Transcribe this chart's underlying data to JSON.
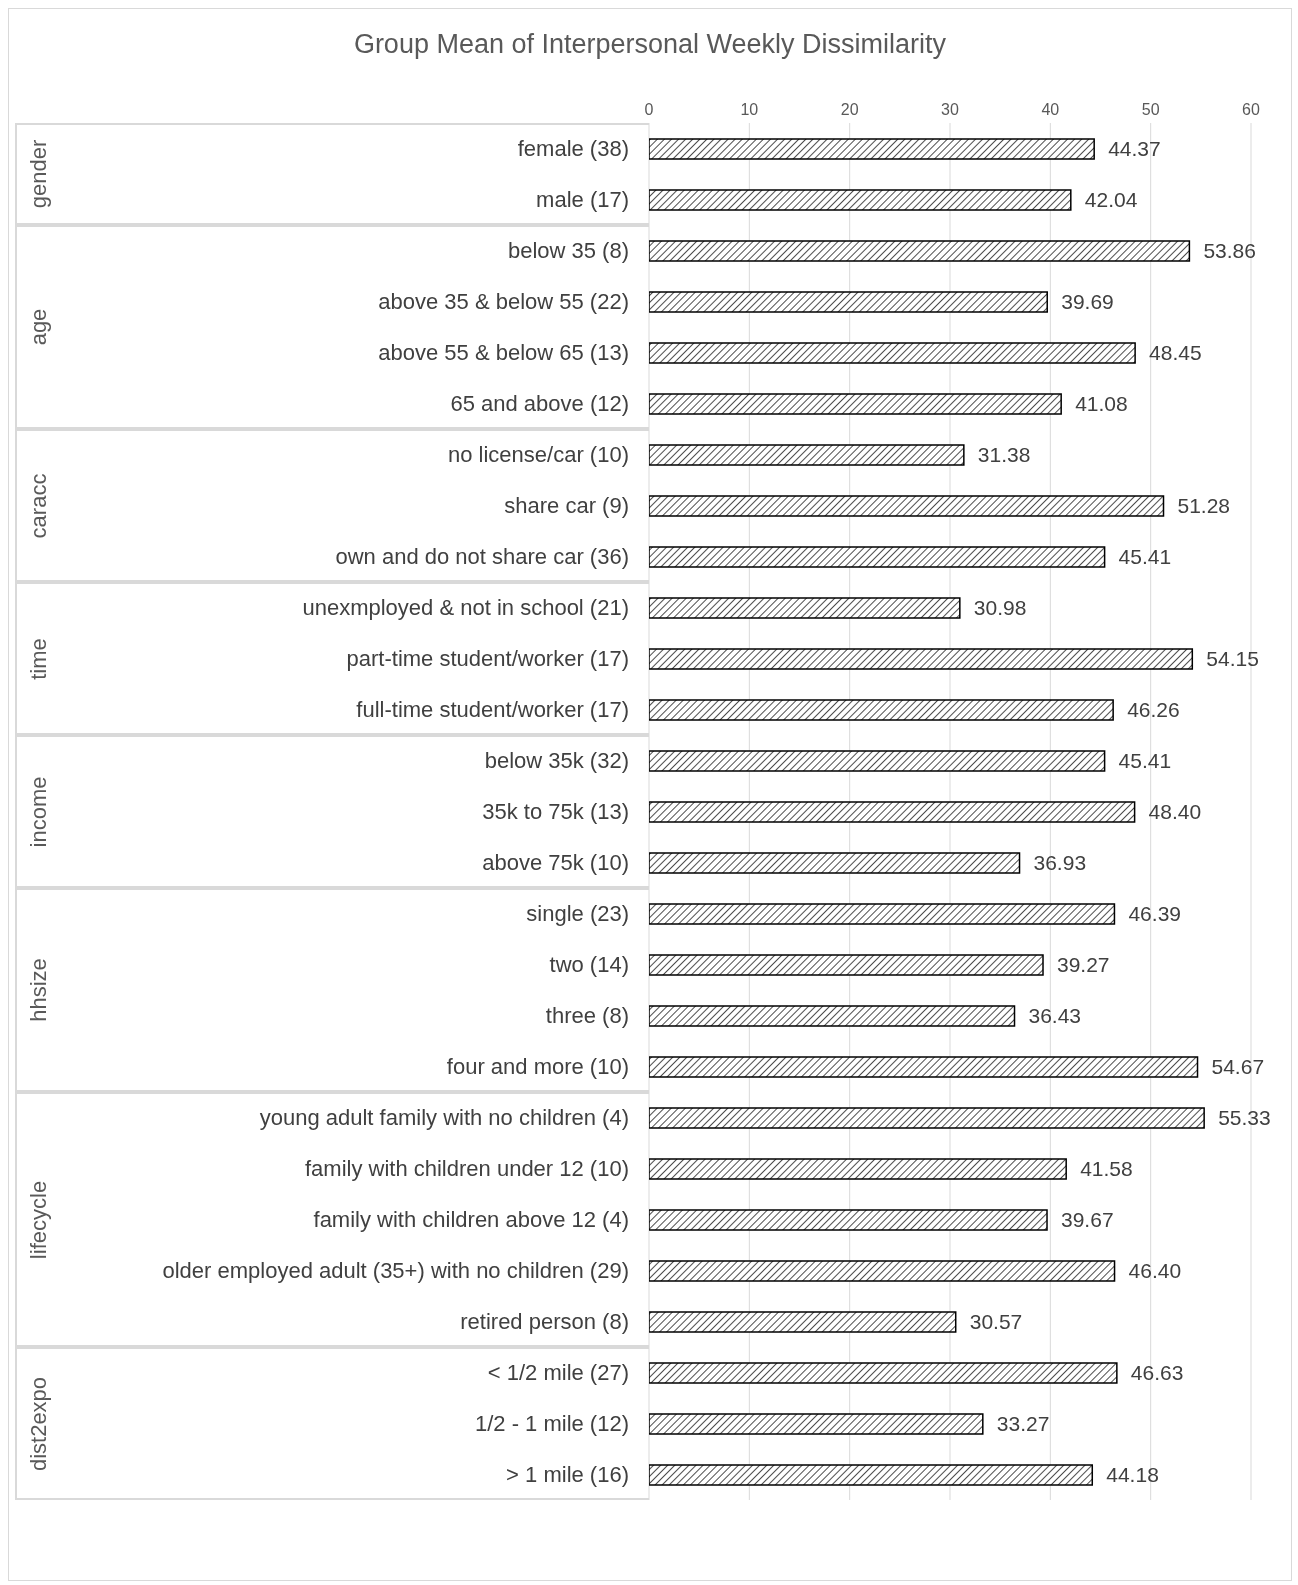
{
  "chart_data": {
    "type": "bar",
    "orientation": "horizontal",
    "title": "Group Mean of Interpersonal Weekly Dissimilarity",
    "categories": [
      "female (38)",
      "male (17)",
      "below 35 (8)",
      "above 35 & below 55 (22)",
      "above 55  & below 65 (13)",
      "65 and above (12)",
      "no license/car (10)",
      "share car (9)",
      "own and do not share car (36)",
      "unexmployed & not in school (21)",
      "part-time student/worker (17)",
      "full-time student/worker (17)",
      "below 35k (32)",
      "35k to 75k (13)",
      "above 75k (10)",
      "single (23)",
      "two (14)",
      "three (8)",
      "four and more (10)",
      "young adult family with no children (4)",
      "family with children under 12 (10)",
      "family with children above 12 (4)",
      "older employed adult (35+) with no children (29)",
      "retired person (8)",
      "< 1/2 mile (27)",
      "1/2 - 1 mile (12)",
      "> 1 mile (16)"
    ],
    "values": [
      44.37,
      42.04,
      53.86,
      39.69,
      48.45,
      41.08,
      31.38,
      51.28,
      45.41,
      30.98,
      54.15,
      46.26,
      45.41,
      48.4,
      36.93,
      46.39,
      39.27,
      36.43,
      54.67,
      55.33,
      41.58,
      39.67,
      46.4,
      30.57,
      46.63,
      33.27,
      44.18
    ],
    "value_labels": [
      "44.37",
      "42.04",
      "53.86",
      "39.69",
      "48.45",
      "41.08",
      "31.38",
      "51.28",
      "45.41",
      "30.98",
      "54.15",
      "46.26",
      "45.41",
      "48.40",
      "36.93",
      "46.39",
      "39.27",
      "36.43",
      "54.67",
      "55.33",
      "41.58",
      "39.67",
      "46.40",
      "30.57",
      "46.63",
      "33.27",
      "44.18"
    ],
    "color": "#000000",
    "xlim": [
      0,
      60
    ],
    "xticks": [
      0,
      10,
      20,
      30,
      40,
      50,
      60
    ],
    "grid": "x",
    "annotations": [
      "gender",
      "age",
      "caracc",
      "time",
      "income",
      "hhsize",
      "lifecycle",
      "dist2expo"
    ]
  }
}
